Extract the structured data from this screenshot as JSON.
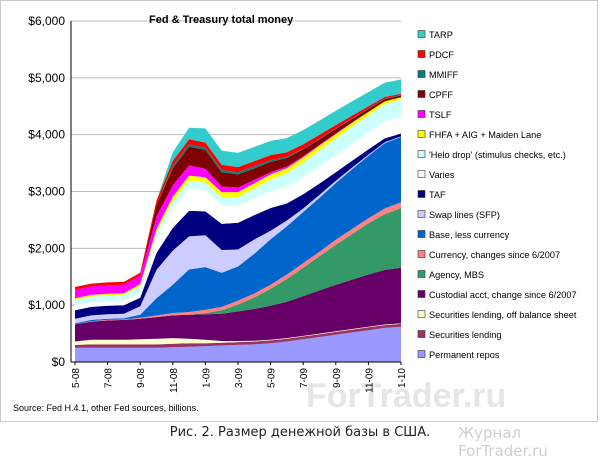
{
  "caption": "Рис. 2. Размер денежной базы в США.",
  "watermark": {
    "big": "ForTrader.ru",
    "small": "Журнал ForTrader.ru"
  },
  "chart_data": {
    "type": "area",
    "stacked": true,
    "title": "Fed & Treasury total money",
    "source_note": "Source: Fed H.4.1, other Fed sources, billions.",
    "y_range": [
      0,
      6000
    ],
    "y_ticks": [
      "$0",
      "$1,000",
      "$2,000",
      "$3,000",
      "$4,000",
      "$5,000",
      "$6,000"
    ],
    "x_tick_labels": [
      "5-08",
      "7-08",
      "9-08",
      "11-08",
      "1-09",
      "3-09",
      "5-09",
      "7-09",
      "9-09",
      "11-09",
      "1-10"
    ],
    "grid": true,
    "legend_position": "right",
    "x": [
      "5-08",
      "6-08",
      "7-08",
      "8-08",
      "9-08",
      "10-08",
      "11-08",
      "12-08",
      "1-09",
      "2-09",
      "3-09",
      "4-09",
      "5-09",
      "6-09",
      "7-09",
      "8-09",
      "9-09",
      "10-09",
      "11-09",
      "12-09",
      "1-10"
    ],
    "series": [
      {
        "name": "Permanent repos",
        "color": "#9999ff",
        "values": [
          250,
          250,
          250,
          250,
          250,
          250,
          260,
          270,
          280,
          290,
          300,
          310,
          330,
          360,
          400,
          440,
          480,
          520,
          560,
          600,
          620
        ]
      },
      {
        "name": "Securities lending",
        "color": "#993366",
        "values": [
          50,
          60,
          60,
          60,
          60,
          60,
          60,
          60,
          50,
          50,
          50,
          50,
          50,
          50,
          50,
          50,
          50,
          50,
          50,
          50,
          50
        ]
      },
      {
        "name": "Securities lending, off balance sheet",
        "color": "#ffffcc",
        "values": [
          60,
          80,
          80,
          80,
          90,
          100,
          100,
          80,
          60,
          30,
          20,
          15,
          10,
          10,
          10,
          10,
          10,
          10,
          10,
          10,
          10
        ]
      },
      {
        "name": "Custodial acct, change since 6/2007",
        "color": "#660066",
        "values": [
          300,
          320,
          340,
          350,
          360,
          380,
          400,
          420,
          450,
          480,
          520,
          560,
          600,
          640,
          700,
          760,
          820,
          870,
          920,
          960,
          980
        ]
      },
      {
        "name": "Agency, MBS",
        "color": "#339966",
        "values": [
          0,
          0,
          0,
          0,
          0,
          0,
          0,
          0,
          20,
          60,
          120,
          200,
          300,
          400,
          500,
          600,
          700,
          800,
          900,
          980,
          1050
        ]
      },
      {
        "name": "Currency, changes since 6/2007",
        "color": "#ff8080",
        "values": [
          0,
          10,
          10,
          10,
          20,
          30,
          40,
          50,
          60,
          60,
          70,
          70,
          70,
          80,
          80,
          80,
          90,
          90,
          90,
          100,
          100
        ]
      },
      {
        "name": "Base, less currency",
        "color": "#0066cc",
        "values": [
          20,
          20,
          20,
          20,
          50,
          300,
          500,
          750,
          750,
          600,
          600,
          700,
          800,
          850,
          900,
          950,
          1000,
          1050,
          1100,
          1150,
          1150
        ]
      },
      {
        "name": "Swap lines (SFP)",
        "color": "#ccccff",
        "values": [
          80,
          80,
          80,
          80,
          150,
          500,
          600,
          580,
          560,
          400,
          300,
          250,
          150,
          100,
          60,
          50,
          40,
          30,
          20,
          15,
          10
        ]
      },
      {
        "name": "TAF",
        "color": "#000080",
        "values": [
          150,
          150,
          150,
          150,
          150,
          300,
          400,
          450,
          420,
          460,
          470,
          430,
          400,
          300,
          250,
          200,
          150,
          120,
          90,
          70,
          50
        ]
      },
      {
        "name": "Varies",
        "color": "#ffffff",
        "values": [
          80,
          80,
          80,
          80,
          100,
          250,
          350,
          400,
          380,
          330,
          300,
          300,
          300,
          300,
          300,
          300,
          300,
          300,
          300,
          300,
          300
        ]
      },
      {
        "name": "'Helo drop' (stimulus checks, etc.)",
        "color": "#ccffff",
        "values": [
          100,
          100,
          100,
          100,
          100,
          110,
          120,
          130,
          130,
          140,
          150,
          170,
          200,
          230,
          260,
          280,
          290,
          300,
          300,
          300,
          300
        ]
      },
      {
        "name": "FHFA + AIG + Maiden Lane",
        "color": "#ffff00",
        "values": [
          30,
          30,
          30,
          30,
          40,
          60,
          80,
          90,
          90,
          90,
          90,
          90,
          90,
          90,
          90,
          90,
          80,
          70,
          60,
          50,
          40
        ]
      },
      {
        "name": "TSLF",
        "color": "#ff00ff",
        "values": [
          150,
          150,
          150,
          150,
          150,
          220,
          200,
          180,
          150,
          100,
          80,
          60,
          40,
          30,
          20,
          10,
          10,
          5,
          0,
          0,
          0
        ]
      },
      {
        "name": "CPFF",
        "color": "#800000",
        "values": [
          0,
          0,
          0,
          0,
          0,
          200,
          300,
          330,
          330,
          250,
          230,
          200,
          180,
          150,
          120,
          100,
          80,
          60,
          50,
          40,
          30
        ]
      },
      {
        "name": "MMIFF",
        "color": "#008080",
        "values": [
          0,
          0,
          0,
          0,
          0,
          0,
          40,
          40,
          40,
          40,
          40,
          40,
          30,
          20,
          10,
          10,
          10,
          10,
          10,
          10,
          10
        ]
      },
      {
        "name": "PDCF",
        "color": "#ff0000",
        "values": [
          50,
          50,
          50,
          50,
          50,
          80,
          90,
          90,
          90,
          90,
          90,
          90,
          90,
          80,
          80,
          70,
          60,
          50,
          40,
          30,
          20
        ]
      },
      {
        "name": "TARP",
        "color": "#33cccc",
        "values": [
          0,
          0,
          0,
          0,
          0,
          0,
          150,
          200,
          250,
          250,
          250,
          250,
          250,
          250,
          250,
          250,
          250,
          250,
          250,
          250,
          250
        ]
      }
    ]
  }
}
